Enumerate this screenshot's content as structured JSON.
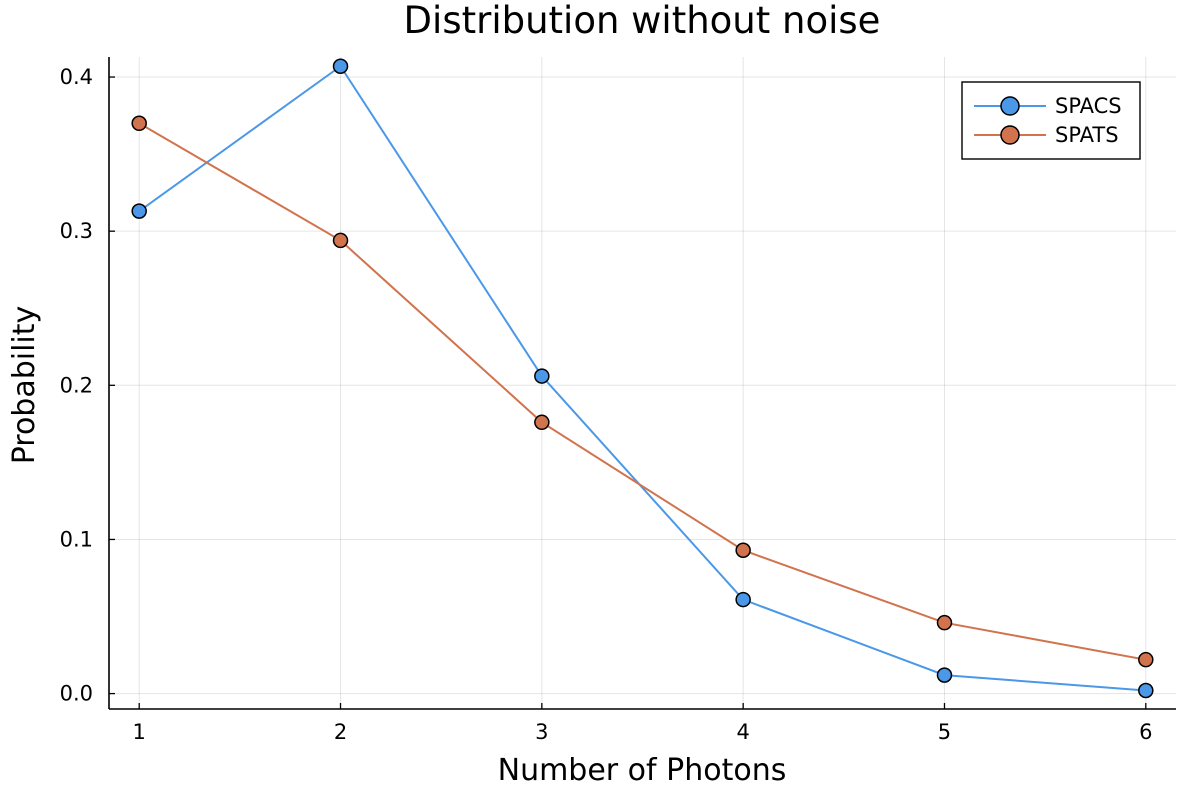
{
  "chart_data": {
    "type": "line",
    "title": "Distribution without noise",
    "xlabel": "Number of Photons",
    "ylabel": "Probability",
    "x": [
      1,
      2,
      3,
      4,
      5,
      6
    ],
    "xlim": [
      0.85,
      6.15
    ],
    "ylim": [
      -0.01,
      0.413
    ],
    "xticks": [
      1,
      2,
      3,
      4,
      5,
      6
    ],
    "xtick_labels": [
      "1",
      "2",
      "3",
      "4",
      "5",
      "6"
    ],
    "yticks": [
      0.0,
      0.1,
      0.2,
      0.3,
      0.4
    ],
    "ytick_labels": [
      "0.0",
      "0.1",
      "0.2",
      "0.3",
      "0.4"
    ],
    "grid": true,
    "legend_position": "top-right",
    "series": [
      {
        "name": "SPACS",
        "color": "#4b98e8",
        "marker": "circle",
        "values": [
          0.313,
          0.407,
          0.206,
          0.061,
          0.012,
          0.002
        ]
      },
      {
        "name": "SPATS",
        "color": "#d1734d",
        "marker": "circle",
        "values": [
          0.37,
          0.294,
          0.176,
          0.093,
          0.046,
          0.022
        ]
      }
    ]
  }
}
